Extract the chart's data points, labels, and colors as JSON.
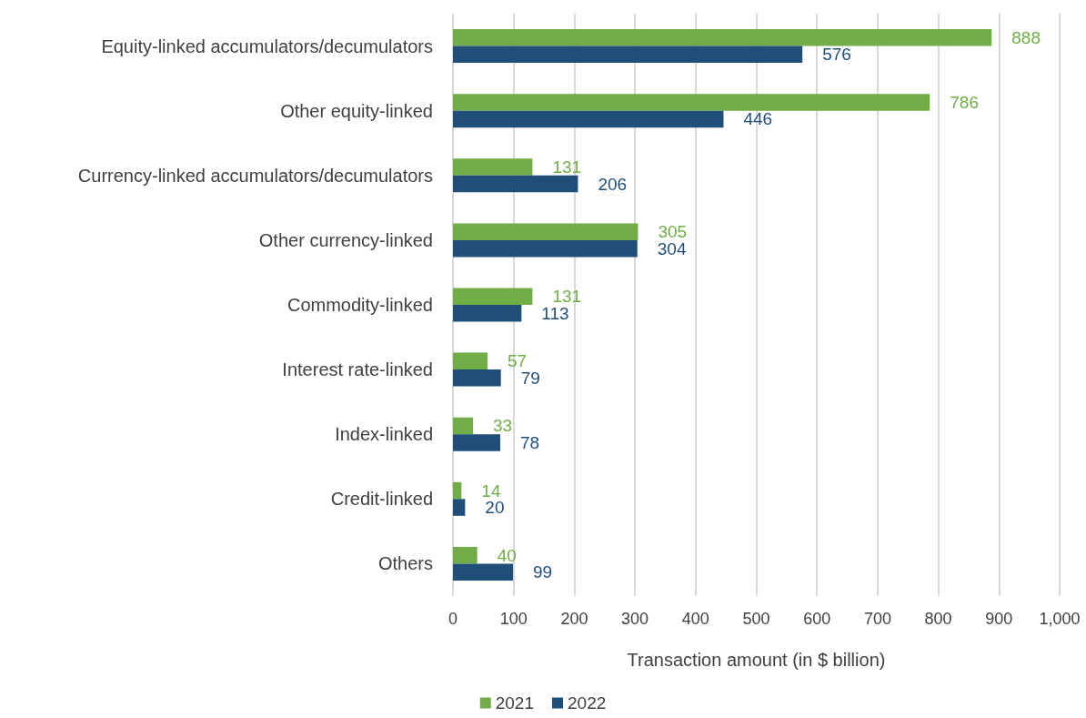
{
  "chart_data": {
    "type": "bar",
    "orientation": "horizontal",
    "xlabel": "Transaction amount (in $ billion)",
    "categories": [
      "Equity-linked accumulators/decumulators",
      "Other equity-linked",
      "Currency-linked accumulators/decumulators",
      "Other currency-linked",
      "Commodity-linked",
      "Interest rate-linked",
      "Index-linked",
      "Credit-linked",
      "Others"
    ],
    "series": [
      {
        "name": "2021",
        "color": "#70ad47",
        "values": [
          888,
          786,
          131,
          305,
          131,
          57,
          33,
          14,
          40
        ]
      },
      {
        "name": "2022",
        "color": "#1f4e79",
        "values": [
          576,
          446,
          206,
          304,
          113,
          79,
          78,
          20,
          99
        ]
      }
    ],
    "xlim": [
      0,
      1000
    ],
    "xticks": [
      0,
      100,
      200,
      300,
      400,
      500,
      600,
      700,
      800,
      900,
      {
        "value": 1000,
        "label": "1,000"
      }
    ],
    "grid": "x",
    "legend": "bottom",
    "data_labels": true
  }
}
